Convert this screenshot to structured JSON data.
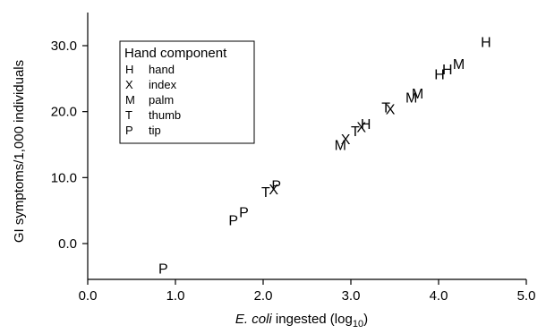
{
  "chart_data": {
    "type": "scatter",
    "xlabel_italic": "E. coli",
    "xlabel_rest": " ingested (log",
    "xlabel_sub": "10",
    "xlabel_end": ")",
    "ylabel": "GI symptoms/1,000 individuals",
    "xlim": [
      0.0,
      5.0
    ],
    "ylim": [
      -5.0,
      35.0
    ],
    "x_ticks": [
      "0.0",
      "1.0",
      "2.0",
      "3.0",
      "4.0",
      "5.0"
    ],
    "y_ticks": [
      "0.0",
      "10.0",
      "20.0",
      "30.0"
    ],
    "legend": {
      "title": "Hand component",
      "position": "top-left",
      "entries": [
        {
          "marker": "H",
          "label": "hand"
        },
        {
          "marker": "X",
          "label": "index"
        },
        {
          "marker": "M",
          "label": "palm"
        },
        {
          "marker": "T",
          "label": "thumb"
        },
        {
          "marker": "P",
          "label": "tip"
        }
      ]
    },
    "points": [
      {
        "marker": "P",
        "x": 0.86,
        "y": -3.7
      },
      {
        "marker": "P",
        "x": 1.66,
        "y": 3.6
      },
      {
        "marker": "P",
        "x": 1.78,
        "y": 4.8
      },
      {
        "marker": "T",
        "x": 2.03,
        "y": 7.9
      },
      {
        "marker": "X",
        "x": 2.12,
        "y": 8.3
      },
      {
        "marker": "P",
        "x": 2.15,
        "y": 8.9
      },
      {
        "marker": "M",
        "x": 2.88,
        "y": 15.0
      },
      {
        "marker": "X",
        "x": 2.94,
        "y": 15.9
      },
      {
        "marker": "T",
        "x": 3.05,
        "y": 17.1
      },
      {
        "marker": "X",
        "x": 3.12,
        "y": 17.7
      },
      {
        "marker": "H",
        "x": 3.17,
        "y": 18.2
      },
      {
        "marker": "T",
        "x": 3.4,
        "y": 20.7
      },
      {
        "marker": "X",
        "x": 3.45,
        "y": 20.4
      },
      {
        "marker": "M",
        "x": 3.69,
        "y": 22.2
      },
      {
        "marker": "M",
        "x": 3.76,
        "y": 22.8
      },
      {
        "marker": "H",
        "x": 4.01,
        "y": 25.7
      },
      {
        "marker": "H",
        "x": 4.1,
        "y": 26.5
      },
      {
        "marker": "M",
        "x": 4.23,
        "y": 27.3
      },
      {
        "marker": "H",
        "x": 4.54,
        "y": 30.6
      }
    ]
  }
}
